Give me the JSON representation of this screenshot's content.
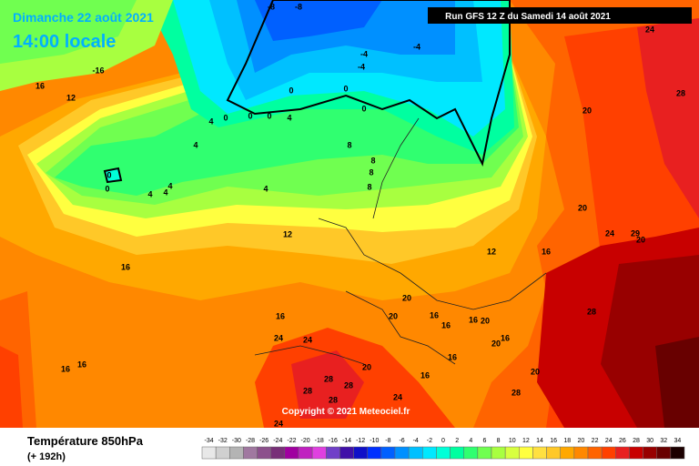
{
  "header": {
    "date": "Dimanche 22 août 2021",
    "time": "14:00 locale",
    "run": "Run GFS 12 Z du Samedi 14 août 2021"
  },
  "copyright": "Copyright © 2021 Meteociel.fr",
  "footer": {
    "title": "Température 850hPa",
    "lead": "(+ 192h)"
  },
  "legend": {
    "ticks": [
      -34,
      -32,
      -30,
      -28,
      -26,
      -24,
      -22,
      -20,
      -18,
      -16,
      -14,
      -12,
      -10,
      -8,
      -6,
      -4,
      -2,
      0,
      2,
      4,
      6,
      8,
      10,
      12,
      14,
      16,
      18,
      20,
      22,
      24,
      26,
      28,
      30,
      32,
      34
    ],
    "colors": [
      "#e8e8e8",
      "#d0d0d0",
      "#b4b4b4",
      "#a078a0",
      "#8c508c",
      "#783078",
      "#a000a0",
      "#c020c0",
      "#e040e0",
      "#7040c8",
      "#4010a8",
      "#1010c8",
      "#0030ff",
      "#0060ff",
      "#0090ff",
      "#00c0ff",
      "#00e8ff",
      "#00ffd8",
      "#00ffa0",
      "#30ff70",
      "#70ff50",
      "#a8ff40",
      "#d8ff40",
      "#ffff40",
      "#ffe040",
      "#ffc828",
      "#ffa800",
      "#ff8800",
      "#ff6400",
      "#ff4000",
      "#e82020",
      "#c80000",
      "#980000",
      "#680000",
      "#1c0000"
    ]
  },
  "contour_labels": [
    -8,
    -8,
    -4,
    -4,
    -4,
    0,
    0,
    0,
    0,
    0,
    0,
    4,
    4,
    4,
    4,
    0,
    0,
    4,
    4,
    4,
    8,
    8,
    8,
    8,
    12,
    12,
    16,
    12,
    -16,
    16,
    16,
    16,
    16,
    16,
    20,
    20,
    20,
    20,
    20,
    20,
    20,
    16,
    16,
    16,
    16,
    16,
    16,
    24,
    24,
    28,
    28,
    28,
    28,
    24,
    24,
    28,
    28,
    24,
    29,
    20,
    24,
    20,
    28
  ]
}
